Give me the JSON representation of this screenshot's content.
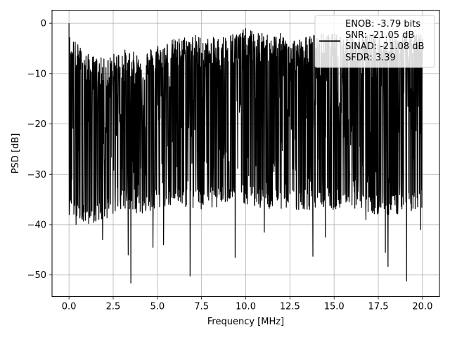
{
  "chart_data": {
    "type": "line",
    "xlabel": "Frequency [MHz]",
    "ylabel": "PSD [dB]",
    "xlim": [
      -0.96,
      20.96
    ],
    "ylim": [
      -54.3,
      2.6
    ],
    "x_ticks": [
      0.0,
      2.5,
      5.0,
      7.5,
      10.0,
      12.5,
      15.0,
      17.5,
      20.0
    ],
    "x_tick_labels": [
      "0.0",
      "2.5",
      "5.0",
      "7.5",
      "10.0",
      "12.5",
      "15.0",
      "17.5",
      "20.0"
    ],
    "y_ticks": [
      0,
      -10,
      -20,
      -30,
      -40,
      -50
    ],
    "y_tick_labels": [
      "0",
      "−10",
      "−20",
      "−30",
      "−40",
      "−50"
    ],
    "grid": true,
    "legend_position": "top-right",
    "legend_lines": [
      "ENOB: -3.79 bits",
      "SNR: -21.05 dB",
      "SINAD: -21.08 dB",
      "SFDR: 3.39"
    ],
    "series_color": "#000000",
    "series": [
      {
        "x_start": 0.0,
        "x_end": 20.0,
        "notable_points": [
          {
            "x": 0.0,
            "y": 0.0
          },
          {
            "x": 0.05,
            "y": -17.0
          },
          {
            "x": 0.1,
            "y": -6.0
          },
          {
            "x": 0.4,
            "y": -40.0
          },
          {
            "x": 1.9,
            "y": -43.0
          },
          {
            "x": 3.35,
            "y": -46.0
          },
          {
            "x": 3.5,
            "y": -51.6
          },
          {
            "x": 4.75,
            "y": -44.5
          },
          {
            "x": 5.35,
            "y": -44.0
          },
          {
            "x": 6.85,
            "y": -50.2
          },
          {
            "x": 9.4,
            "y": -46.5
          },
          {
            "x": 11.05,
            "y": -41.5
          },
          {
            "x": 13.8,
            "y": -46.3
          },
          {
            "x": 14.5,
            "y": -42.5
          },
          {
            "x": 16.8,
            "y": -39.0
          },
          {
            "x": 17.9,
            "y": -45.5
          },
          {
            "x": 18.05,
            "y": -48.3
          },
          {
            "x": 19.1,
            "y": -51.2
          },
          {
            "x": 19.9,
            "y": -41.0
          }
        ],
        "band_top_values": [
          -8,
          -12,
          -13,
          -11,
          -12,
          -10,
          -9,
          -8,
          -9,
          -8,
          -7,
          -8,
          -8,
          -9,
          -8,
          -8,
          -8,
          -8,
          -8,
          -8,
          -8
        ],
        "band_bottom_values": [
          -34,
          -36,
          -35,
          -33,
          -34,
          -33,
          -32,
          -33,
          -33,
          -32,
          -32,
          -33,
          -33,
          -33,
          -33,
          -33,
          -33,
          -34,
          -34,
          -34,
          -33
        ]
      }
    ]
  }
}
